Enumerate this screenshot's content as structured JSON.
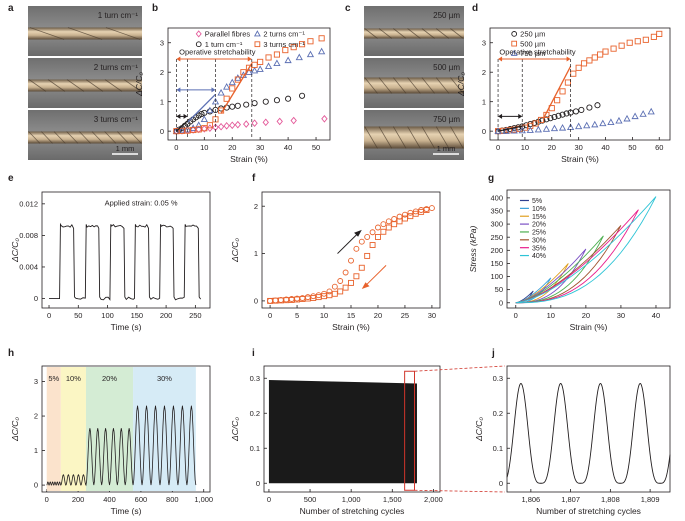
{
  "figure": {
    "panel_letters": [
      "a",
      "b",
      "c",
      "d",
      "e",
      "f",
      "g",
      "h",
      "i",
      "j"
    ],
    "photo_labels_a": [
      "1 turn cm⁻¹",
      "2 turns cm⁻¹",
      "3 turns cm⁻¹"
    ],
    "photo_labels_c": [
      "250 µm",
      "500 µm",
      "750 µm"
    ],
    "scale_bar": "1 mm",
    "operative_label": "Operative stretchability",
    "applied_strain_label": "Applied strain: 0.05 %",
    "colors": {
      "black": "#231f20",
      "blue": "#5b6fb3",
      "orange": "#e8622c",
      "pink": "#e45a9a",
      "grey": "#8c8c8c"
    }
  },
  "chart_data": [
    {
      "id": "b",
      "type": "scatter",
      "xlabel": "Strain (%)",
      "ylabel": "ΔC/C₀",
      "xlim": [
        -3,
        55
      ],
      "ylim": [
        -0.3,
        3.5
      ],
      "xticks": [
        "0",
        "10",
        "20",
        "30",
        "40",
        "50"
      ],
      "yticks": [
        "0",
        "1",
        "2",
        "3"
      ],
      "legend": [
        "Parallel fibres",
        "1 turn cm⁻¹",
        "2 turns cm⁻¹",
        "3 turns cm⁻¹"
      ],
      "series": [
        {
          "name": "Parallel fibres",
          "marker": "diamond",
          "color": "#e45a9a",
          "x": [
            0,
            2,
            4,
            6,
            8,
            10,
            12,
            14,
            16,
            18,
            20,
            22,
            25,
            28,
            32,
            37,
            42,
            53
          ],
          "y": [
            0,
            0.01,
            0.02,
            0.04,
            0.06,
            0.08,
            0.1,
            0.13,
            0.15,
            0.18,
            0.2,
            0.22,
            0.24,
            0.27,
            0.3,
            0.33,
            0.36,
            0.42
          ]
        },
        {
          "name": "1 turn cm⁻¹",
          "marker": "circle",
          "color": "#231f20",
          "x": [
            0,
            1,
            2,
            3,
            4,
            5,
            6,
            7,
            8,
            9,
            10,
            12,
            14,
            16,
            18,
            20,
            22,
            25,
            28,
            32,
            36,
            40,
            45
          ],
          "y": [
            0,
            0.05,
            0.1,
            0.18,
            0.25,
            0.33,
            0.4,
            0.47,
            0.53,
            0.58,
            0.62,
            0.67,
            0.72,
            0.77,
            0.8,
            0.83,
            0.86,
            0.9,
            0.95,
            1.0,
            1.05,
            1.1,
            1.2
          ]
        },
        {
          "name": "2 turns cm⁻¹",
          "marker": "triangle",
          "color": "#5b6fb3",
          "x": [
            0,
            2,
            4,
            6,
            8,
            10,
            12,
            14,
            16,
            18,
            20,
            22,
            24,
            26,
            28,
            30,
            33,
            36,
            40,
            44,
            48,
            52
          ],
          "y": [
            0,
            0.02,
            0.05,
            0.1,
            0.2,
            0.4,
            0.7,
            1.0,
            1.3,
            1.5,
            1.65,
            1.8,
            1.9,
            2.0,
            2.05,
            2.1,
            2.2,
            2.3,
            2.4,
            2.5,
            2.6,
            2.7
          ]
        },
        {
          "name": "3 turns cm⁻¹",
          "marker": "square",
          "color": "#e8622c",
          "x": [
            0,
            2,
            4,
            6,
            8,
            10,
            12,
            14,
            16,
            18,
            20,
            22,
            24,
            26,
            28,
            30,
            33,
            36,
            39,
            42,
            45,
            48,
            52
          ],
          "y": [
            0,
            0.01,
            0.02,
            0.04,
            0.06,
            0.1,
            0.2,
            0.4,
            0.7,
            1.1,
            1.45,
            1.75,
            2.0,
            2.15,
            2.25,
            2.35,
            2.5,
            2.6,
            2.75,
            2.85,
            2.95,
            3.05,
            3.15
          ]
        }
      ]
    },
    {
      "id": "d",
      "type": "scatter",
      "xlabel": "Strain (%)",
      "ylabel": "ΔC/C₀",
      "xlim": [
        -3,
        64
      ],
      "ylim": [
        -0.3,
        3.5
      ],
      "xticks": [
        "0",
        "10",
        "20",
        "30",
        "40",
        "50",
        "60"
      ],
      "yticks": [
        "0",
        "1",
        "2",
        "3"
      ],
      "legend": [
        "250 µm",
        "500 µm",
        "750 µm"
      ],
      "series": [
        {
          "name": "250 µm",
          "marker": "circle",
          "color": "#231f20",
          "x": [
            0,
            1.5,
            3,
            4.5,
            6,
            7.5,
            9,
            10.5,
            12,
            13.5,
            15,
            16.5,
            18,
            19.5,
            21,
            22.5,
            24,
            25.5,
            27,
            29,
            31,
            34,
            37
          ],
          "y": [
            0,
            0.02,
            0.04,
            0.07,
            0.1,
            0.13,
            0.16,
            0.2,
            0.24,
            0.28,
            0.32,
            0.36,
            0.4,
            0.44,
            0.48,
            0.52,
            0.56,
            0.6,
            0.63,
            0.67,
            0.72,
            0.8,
            0.88
          ]
        },
        {
          "name": "500 µm",
          "marker": "square",
          "color": "#e8622c",
          "x": [
            0,
            2,
            4,
            6,
            8,
            10,
            12,
            14,
            16,
            18,
            20,
            22,
            24,
            26,
            28,
            30,
            32,
            34,
            36,
            38,
            40,
            43,
            46,
            49,
            52,
            55,
            58,
            60
          ],
          "y": [
            0,
            0.01,
            0.03,
            0.05,
            0.08,
            0.12,
            0.18,
            0.26,
            0.38,
            0.55,
            0.78,
            1.05,
            1.35,
            1.65,
            1.95,
            2.15,
            2.3,
            2.4,
            2.5,
            2.6,
            2.7,
            2.8,
            2.9,
            3.0,
            3.05,
            3.1,
            3.2,
            3.3
          ]
        },
        {
          "name": "750 µm",
          "marker": "triangle",
          "color": "#5b6fb3",
          "x": [
            0,
            3,
            6,
            9,
            12,
            15,
            18,
            21,
            24,
            27,
            30,
            33,
            36,
            39,
            42,
            45,
            48,
            51,
            54,
            57
          ],
          "y": [
            0,
            0,
            0.01,
            0.02,
            0.03,
            0.05,
            0.07,
            0.09,
            0.11,
            0.13,
            0.16,
            0.19,
            0.22,
            0.26,
            0.3,
            0.35,
            0.42,
            0.5,
            0.58,
            0.66
          ]
        }
      ]
    },
    {
      "id": "e",
      "type": "line",
      "xlabel": "Time (s)",
      "ylabel": "ΔC/C₀",
      "xlim": [
        -12,
        275
      ],
      "ylim": [
        -0.0012,
        0.0135
      ],
      "xticks": [
        "0",
        "50",
        "100",
        "150",
        "200",
        "250"
      ],
      "yticks": [
        "0",
        "0.004",
        "0.008",
        "0.012"
      ],
      "annotation": "Applied strain: 0.05 %",
      "pulses": {
        "baseline": 0,
        "plateau": 0.0092,
        "on": [
          18,
          62,
          104,
          146,
          189,
          231
        ],
        "off": [
          42,
          85,
          128,
          170,
          212,
          255
        ]
      },
      "x_end": 262
    },
    {
      "id": "f",
      "type": "scatter",
      "xlabel": "Strain (%)",
      "ylabel": "ΔC/C₀",
      "xlim": [
        -1.5,
        31.5
      ],
      "ylim": [
        -0.15,
        2.3
      ],
      "xticks": [
        "0",
        "5",
        "10",
        "15",
        "20",
        "25",
        "30"
      ],
      "yticks": [
        "0",
        "1",
        "2"
      ],
      "series": [
        {
          "name": "",
          "marker": "circle",
          "color": "#e8622c",
          "x": [
            0,
            1,
            2,
            3,
            4,
            5,
            6,
            7,
            8,
            9,
            10,
            11,
            12,
            13,
            14,
            15,
            16,
            17,
            18,
            19,
            20,
            21,
            22,
            23,
            24,
            25,
            26,
            27,
            28,
            29,
            30
          ],
          "y": [
            0,
            0.01,
            0.02,
            0.03,
            0.04,
            0.05,
            0.06,
            0.08,
            0.1,
            0.12,
            0.15,
            0.2,
            0.3,
            0.42,
            0.6,
            0.85,
            1.1,
            1.25,
            1.35,
            1.45,
            1.55,
            1.62,
            1.68,
            1.73,
            1.78,
            1.82,
            1.86,
            1.89,
            1.92,
            1.94,
            1.96
          ]
        },
        {
          "name": "",
          "marker": "square",
          "color": "#e8622c",
          "x": [
            29,
            28,
            27,
            26,
            25,
            24,
            23,
            22,
            21,
            20,
            19,
            18,
            17,
            16,
            15,
            14,
            13,
            12,
            11,
            10,
            9,
            8,
            7,
            6,
            5,
            4,
            3,
            2,
            1,
            0
          ],
          "y": [
            1.92,
            1.88,
            1.84,
            1.79,
            1.74,
            1.68,
            1.62,
            1.55,
            1.46,
            1.35,
            1.18,
            0.95,
            0.7,
            0.52,
            0.38,
            0.28,
            0.2,
            0.15,
            0.12,
            0.1,
            0.08,
            0.06,
            0.05,
            0.04,
            0.03,
            0.02,
            0.015,
            0.01,
            0.005,
            0
          ]
        }
      ]
    },
    {
      "id": "g",
      "type": "line",
      "xlabel": "Strain (%)",
      "ylabel": "Stress (kPa)",
      "xlim": [
        -2.5,
        44
      ],
      "ylim": [
        -20,
        430
      ],
      "xticks": [
        "0",
        "10",
        "20",
        "30",
        "40"
      ],
      "yticks": [
        "0",
        "50",
        "100",
        "150",
        "200",
        "250",
        "300",
        "350",
        "400"
      ],
      "legend": [
        "5%",
        "10%",
        "15%",
        "20%",
        "25%",
        "30%",
        "35%",
        "40%"
      ],
      "loops": [
        {
          "name": "5%",
          "max_strain": 5,
          "max_stress": 45,
          "color": "#2f3f8f"
        },
        {
          "name": "10%",
          "max_strain": 10,
          "max_stress": 95,
          "color": "#3aa0d8"
        },
        {
          "name": "15%",
          "max_strain": 15,
          "max_stress": 150,
          "color": "#e0a020"
        },
        {
          "name": "20%",
          "max_strain": 20,
          "max_stress": 205,
          "color": "#7a4fc4"
        },
        {
          "name": "25%",
          "max_strain": 25,
          "max_stress": 255,
          "color": "#4caf50"
        },
        {
          "name": "30%",
          "max_strain": 30,
          "max_stress": 295,
          "color": "#a0522d"
        },
        {
          "name": "35%",
          "max_strain": 35,
          "max_stress": 355,
          "color": "#e91e8c"
        },
        {
          "name": "40%",
          "max_strain": 40,
          "max_stress": 405,
          "color": "#2ec4d6"
        }
      ]
    },
    {
      "id": "h",
      "type": "line",
      "xlabel": "Time (s)",
      "ylabel": "ΔC/C₀",
      "xlim": [
        -30,
        1040
      ],
      "ylim": [
        -0.2,
        3.45
      ],
      "xticks": [
        "0",
        "200",
        "400",
        "600",
        "800",
        "1,000"
      ],
      "yticks": [
        "0",
        "1",
        "2",
        "3"
      ],
      "bands": [
        {
          "label": "5%",
          "from": 0,
          "to": 90,
          "color": "#fbe3cc",
          "amplitude": 0.09,
          "n": 6
        },
        {
          "label": "10%",
          "from": 90,
          "to": 250,
          "color": "#fbf6c4",
          "amplitude": 0.3,
          "n": 5
        },
        {
          "label": "20%",
          "from": 250,
          "to": 550,
          "color": "#d4ecd4",
          "amplitude": 1.65,
          "n": 6
        },
        {
          "label": "30%",
          "from": 550,
          "to": 950,
          "color": "#d6ebf6",
          "amplitude": 2.3,
          "n": 7
        }
      ]
    },
    {
      "id": "i",
      "type": "area",
      "xlabel": "Number of stretching cycles",
      "ylabel": "ΔC/C₀",
      "xlim": [
        -60,
        2080
      ],
      "ylim": [
        -0.025,
        0.335
      ],
      "xticks": [
        "0",
        "500",
        "1,000",
        "1,500",
        "2,000"
      ],
      "yticks": [
        "0",
        "0.1",
        "0.2",
        "0.3"
      ],
      "envelope": {
        "start_max": 0.295,
        "end_max": 0.285,
        "min": 0,
        "cycles": 1800
      },
      "highlight": {
        "from": 1650,
        "to": 1770
      }
    },
    {
      "id": "j",
      "type": "line",
      "xlabel": "Number of stretching cycles",
      "ylabel": "ΔC/C₀",
      "xlim": [
        1805.4,
        1809.5
      ],
      "ylim": [
        -0.025,
        0.335
      ],
      "xticks": [
        "1,806",
        "1,807",
        "1,808",
        "1,809"
      ],
      "yticks": [
        "0",
        "0.1",
        "0.2",
        "0.3"
      ],
      "peaks": [
        1805.75,
        1806.75,
        1807.75,
        1808.75
      ],
      "amplitude": 0.285
    }
  ]
}
